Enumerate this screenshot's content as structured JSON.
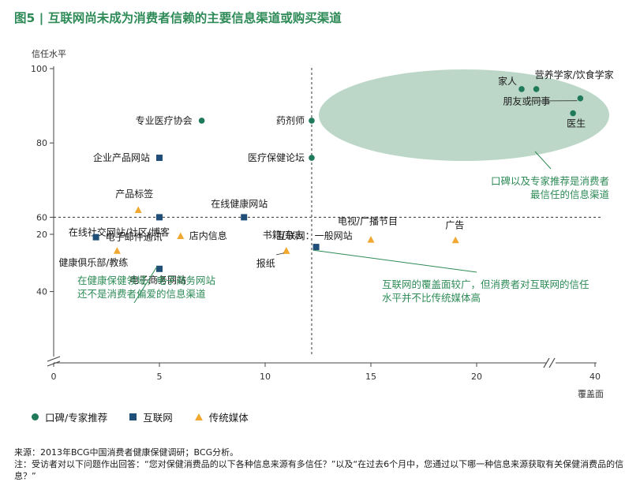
{
  "title": "图5 | 互联网尚未成为消费者信赖的主要信息渠道或购买渠道",
  "chart_data": {
    "type": "scatter",
    "ylabel": "信任水平",
    "xlabel": "覆盖面",
    "xlim": [
      0,
      40
    ],
    "ylim": [
      20,
      100
    ],
    "x_ticks": [
      0,
      5,
      10,
      15,
      20,
      40
    ],
    "x_tick_labels": [
      "0",
      "5",
      "10",
      "15",
      "20",
      "40"
    ],
    "y_ticks": [
      20,
      40,
      60,
      80,
      100
    ],
    "y_tick_labels": [
      "20",
      "40",
      "60",
      "80",
      "100"
    ],
    "axis_break": true,
    "reference_lines": {
      "x": 12.2,
      "y": 60
    },
    "grid": false,
    "legend_position": "bottom-left",
    "series": [
      {
        "name": "口碑/专家推荐",
        "marker": "circle",
        "color": "#1f7a5a",
        "points": [
          {
            "label": "家人",
            "x": 35,
            "y": 94.5
          },
          {
            "label": "营养学家/饮食学家",
            "x": 36,
            "y": 94.5
          },
          {
            "label": "朋友或同事",
            "x": 39,
            "y": 92
          },
          {
            "label": "医生",
            "x": 38.5,
            "y": 88
          },
          {
            "label": "专业医疗协会",
            "x": 7,
            "y": 86
          },
          {
            "label": "药剂师",
            "x": 12.2,
            "y": 86
          },
          {
            "label": "医疗保健论坛",
            "x": 12.2,
            "y": 76
          }
        ]
      },
      {
        "name": "互联网",
        "marker": "square",
        "color": "#1f4e79",
        "points": [
          {
            "label": "企业产品网站",
            "x": 5,
            "y": 76
          },
          {
            "label": "在线社交网站/社区/博客",
            "x": 5,
            "y": 60
          },
          {
            "label": "在线健康网站",
            "x": 9,
            "y": 60
          },
          {
            "label": "互联网：一般网站",
            "x": 21,
            "y": 52
          },
          {
            "label": "电子商务网站",
            "x": 5,
            "y": 32
          },
          {
            "label": "电子邮件通讯",
            "x": 2,
            "y": 21
          }
        ]
      },
      {
        "name": "传统媒体",
        "marker": "triangle",
        "color": "#f0a830",
        "points": [
          {
            "label": "产品标签",
            "x": 4,
            "y": 62
          },
          {
            "label": "店内信息",
            "x": 6,
            "y": 55
          },
          {
            "label": "健康俱乐部/教练",
            "x": 3,
            "y": 51
          },
          {
            "label": "书籍/杂志",
            "x": 11,
            "y": 51
          },
          {
            "label": "电视/广播节目",
            "x": 15,
            "y": 54
          },
          {
            "label": "报纸",
            "x": 11,
            "y": 51
          },
          {
            "label": "广告",
            "x": 19,
            "y": 22
          }
        ]
      }
    ],
    "annotations": [
      {
        "line1": "口碑以及专家推荐是消费者",
        "line2": "最信任的信息渠道"
      },
      {
        "line1": "在健康保健领域，电子商务网站",
        "line2": "还不是消费者偏爱的信息渠道"
      },
      {
        "line1": "互联网的覆盖面较广，但消费者对互联网的信任",
        "line2": "水平并不比传统媒体高"
      }
    ]
  },
  "footnote": {
    "source": "来源：2013年BCG中国消费者健康保健调研；BCG分析。",
    "note": "注：受访者对以下问题作出回答：“您对保健消费品的以下各种信息来源有多信任？”以及“在过去6个月中，您通过以下哪一种信息来源获取有关保健消费品的信息？”"
  }
}
